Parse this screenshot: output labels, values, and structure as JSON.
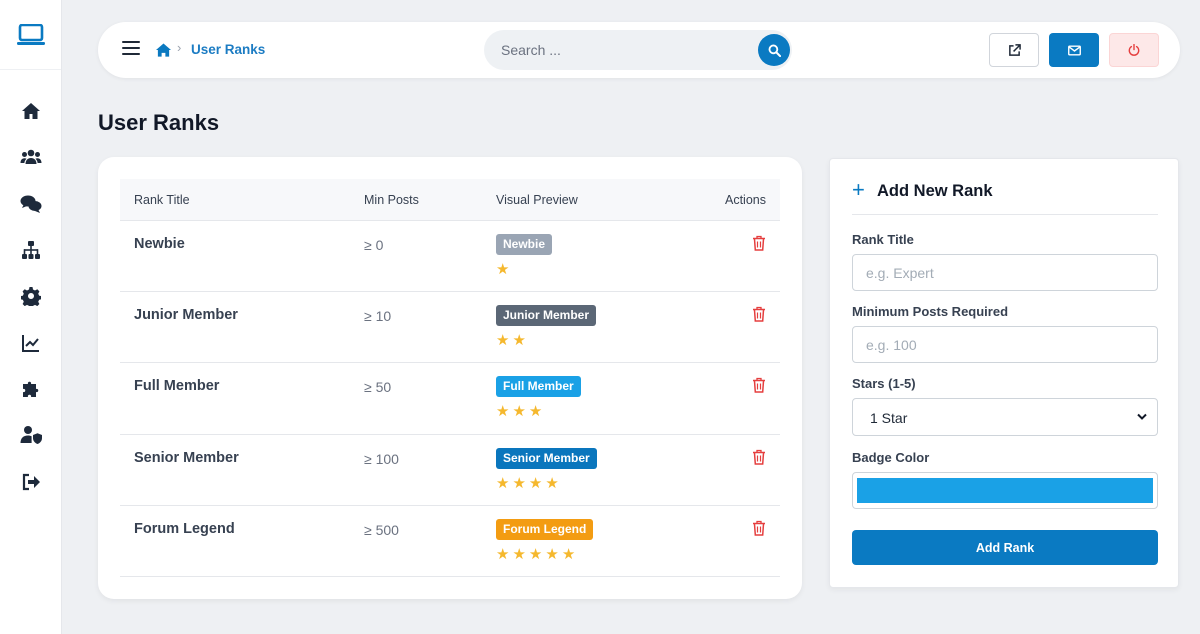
{
  "sidebar": {
    "logo_icon": "laptop-icon",
    "items": [
      {
        "icon": "home-icon"
      },
      {
        "icon": "users-icon"
      },
      {
        "icon": "comments-icon"
      },
      {
        "icon": "sitemap-icon"
      },
      {
        "icon": "gear-icon"
      },
      {
        "icon": "chart-line-icon"
      },
      {
        "icon": "puzzle-icon"
      },
      {
        "icon": "user-shield-icon"
      },
      {
        "icon": "sign-out-icon"
      }
    ]
  },
  "topbar": {
    "breadcrumb": {
      "current": "User Ranks"
    },
    "search": {
      "placeholder": "Search ..."
    }
  },
  "page": {
    "title": "User Ranks"
  },
  "table": {
    "headers": {
      "rank_title": "Rank Title",
      "min_posts": "Min Posts",
      "visual_preview": "Visual Preview",
      "actions": "Actions"
    },
    "rows": [
      {
        "title": "Newbie",
        "min_posts": "≥ 0",
        "badge": "Newbie",
        "badge_color": "#9aa5b4",
        "stars": 1
      },
      {
        "title": "Junior Member",
        "min_posts": "≥ 10",
        "badge": "Junior Member",
        "badge_color": "#5b6776",
        "stars": 2
      },
      {
        "title": "Full Member",
        "min_posts": "≥ 50",
        "badge": "Full Member",
        "badge_color": "#1aa1e6",
        "stars": 3
      },
      {
        "title": "Senior Member",
        "min_posts": "≥ 100",
        "badge": "Senior Member",
        "badge_color": "#0a76bd",
        "stars": 4
      },
      {
        "title": "Forum Legend",
        "min_posts": "≥ 500",
        "badge": "Forum Legend",
        "badge_color": "#f39c12",
        "stars": 5
      }
    ]
  },
  "form": {
    "title": "Add New Rank",
    "rank_title_label": "Rank Title",
    "rank_title_placeholder": "e.g. Expert",
    "min_posts_label": "Minimum Posts Required",
    "min_posts_placeholder": "e.g. 100",
    "stars_label": "Stars (1-5)",
    "stars_value": "1 Star",
    "badge_color_label": "Badge Color",
    "badge_color_value": "#1aa1e6",
    "submit_label": "Add Rank"
  },
  "colors": {
    "accent": "#0a7ac2",
    "danger": "#e53e3e",
    "star": "#f5b82e"
  }
}
